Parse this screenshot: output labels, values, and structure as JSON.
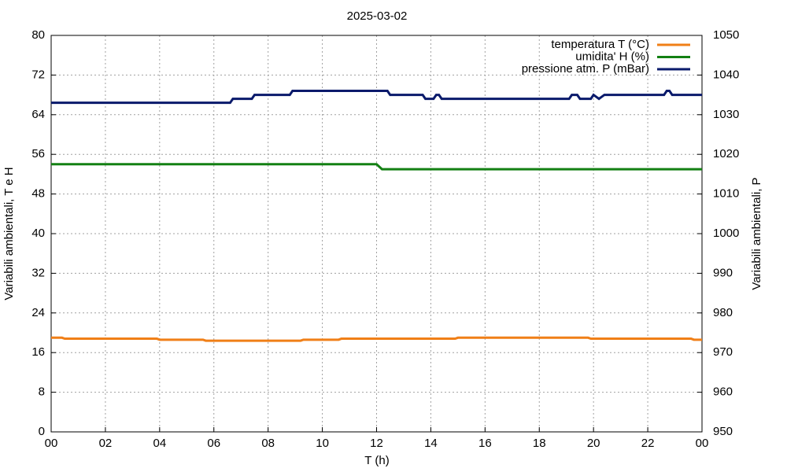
{
  "chart_data": {
    "type": "line",
    "title": "2025-03-02",
    "xlabel": "T (h)",
    "ylabel": "Variabili ambientali, T e H",
    "y2label": "Variabili ambientali, P",
    "xlim": [
      0,
      24
    ],
    "xticks": [
      {
        "value": 0,
        "label": "00"
      },
      {
        "value": 2,
        "label": "02"
      },
      {
        "value": 4,
        "label": "04"
      },
      {
        "value": 6,
        "label": "06"
      },
      {
        "value": 8,
        "label": "08"
      },
      10,
      12,
      14,
      16,
      18,
      20,
      22,
      {
        "value": 24,
        "label": "00"
      }
    ],
    "ylim": [
      0,
      80
    ],
    "yticks": [
      0,
      8,
      16,
      24,
      32,
      40,
      48,
      56,
      64,
      72,
      80
    ],
    "y2lim": [
      950,
      1050
    ],
    "y2ticks": [
      950,
      960,
      970,
      980,
      990,
      1000,
      1010,
      1020,
      1030,
      1040,
      1050
    ],
    "grid": true,
    "legend": "top-right",
    "series": [
      {
        "name": "temperatura T (°C)",
        "color": "#f07f17",
        "x": [
          0,
          0.4,
          0.5,
          3.9,
          4.0,
          5.6,
          5.7,
          9.2,
          9.3,
          10.6,
          10.7,
          14.9,
          15.0,
          19.8,
          19.9,
          23.6,
          23.7,
          24
        ],
        "values": [
          19.0,
          19.0,
          18.8,
          18.8,
          18.6,
          18.6,
          18.4,
          18.4,
          18.6,
          18.6,
          18.8,
          18.8,
          19.0,
          19.0,
          18.8,
          18.8,
          18.6,
          18.6
        ]
      },
      {
        "name": "umidita' H (%)",
        "color": "#138013",
        "x": [
          0,
          12.0,
          12.2,
          24
        ],
        "values": [
          54,
          54,
          53,
          53
        ]
      },
      {
        "name": "pressione atm. P (mBar)",
        "color": "#0a1a6b",
        "axis": "y2",
        "x": [
          0,
          6.6,
          6.7,
          7.4,
          7.5,
          8.8,
          8.9,
          12.4,
          12.5,
          13.7,
          13.8,
          14.1,
          14.2,
          14.3,
          14.4,
          19.1,
          19.2,
          19.4,
          19.5,
          19.9,
          20.0,
          20.2,
          20.4,
          22.6,
          22.7,
          22.8,
          22.9,
          24
        ],
        "values": [
          1033,
          1033,
          1034,
          1034,
          1035,
          1035,
          1036,
          1036,
          1035,
          1035,
          1034,
          1034,
          1035,
          1035,
          1034,
          1034,
          1035,
          1035,
          1034,
          1034,
          1035,
          1034,
          1035,
          1035,
          1036,
          1036,
          1035,
          1035
        ]
      }
    ]
  }
}
